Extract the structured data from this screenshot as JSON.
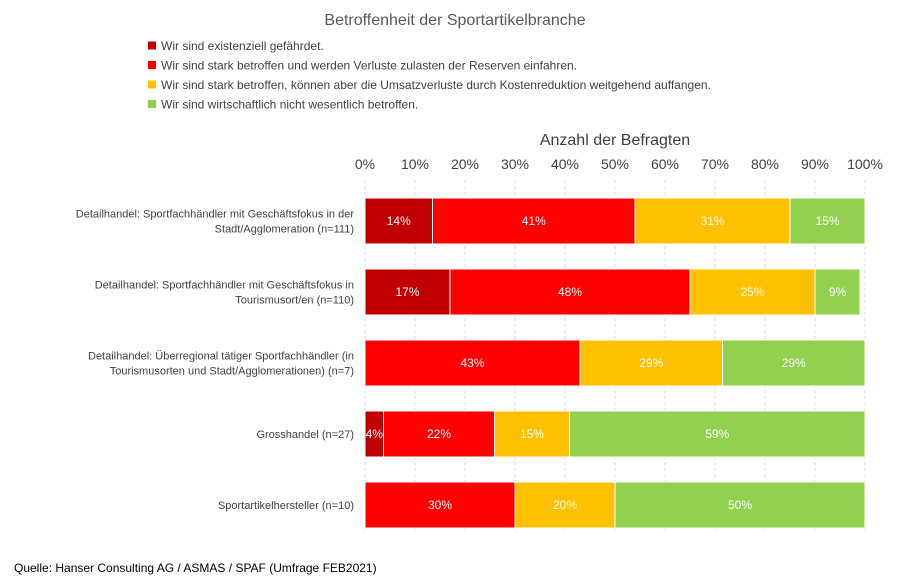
{
  "chart_data": {
    "type": "bar",
    "orientation": "horizontal",
    "stacked": "percent",
    "title": "Betroffenheit der Sportartikelbranche",
    "xlabel": "Anzahl der Befragten",
    "xlim": [
      0,
      100
    ],
    "x_ticks": [
      "0%",
      "10%",
      "20%",
      "30%",
      "40%",
      "50%",
      "60%",
      "70%",
      "80%",
      "90%",
      "100%"
    ],
    "grid": true,
    "legend_position": "top",
    "categories": [
      [
        "Detailhandel: Sportfachhändler mit Geschäftsfokus in der",
        "Stadt/Agglomeration (n=111)"
      ],
      [
        "Detailhandel: Sportfachhändler mit Geschäftsfokus in",
        "Tourismusort/en (n=110)"
      ],
      [
        "Detailhandel: Überregional tätiger Sportfachhändler (in",
        "Tourismusorten und Stadt/Agglomerationen) (n=7)"
      ],
      [
        "Grosshandel (n=27)"
      ],
      [
        "Sportartikelhersteller (n=10)"
      ]
    ],
    "series": [
      {
        "name": "Wir sind existenziell gefährdet.",
        "color": "#c00000",
        "values": [
          13.5,
          17,
          0,
          3.7,
          0
        ],
        "labels": [
          "14%",
          "17%",
          "%",
          "4%",
          "%"
        ]
      },
      {
        "name": "Wir sind stark betroffen und werden Verluste zulasten der Reserven einfahren.",
        "color": "#ff0000",
        "values": [
          40.5,
          48,
          43,
          22.2,
          30
        ],
        "labels": [
          "41%",
          "48%",
          "43%",
          "22%",
          "30%"
        ]
      },
      {
        "name": "Wir sind stark betroffen, können aber die Umsatzverluste durch Kostenreduktion weitgehend auffangen.",
        "color": "#ffc000",
        "values": [
          31,
          25,
          28.5,
          15,
          20
        ],
        "labels": [
          "31%",
          "25%",
          "29%",
          "15%",
          "20%"
        ]
      },
      {
        "name": "Wir sind wirtschaftlich nicht wesentlich betroffen.",
        "color": "#92d050",
        "values": [
          15,
          9,
          28.5,
          59.1,
          50
        ],
        "labels": [
          "15%",
          "9%",
          "29%",
          "59%",
          "50%"
        ]
      }
    ]
  },
  "footer": {
    "source": "Quelle: Hanser Consulting AG / ASMAS / SPAF (Umfrage FEB2021)"
  }
}
